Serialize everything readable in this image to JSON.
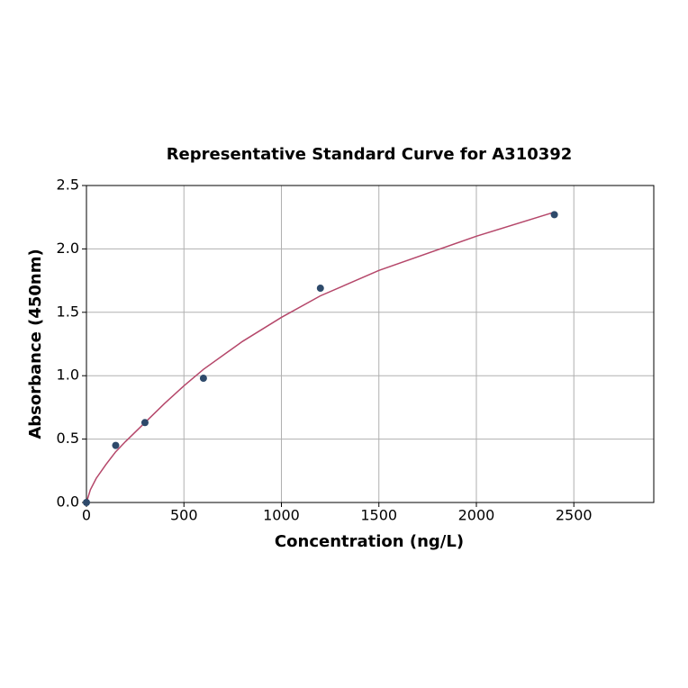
{
  "chart_data": {
    "type": "scatter",
    "title": "Representative Standard Curve for A310392",
    "x_label": "Concentration (ng/L)",
    "y_label": "Absorbance (450nm)",
    "x": [
      0,
      150,
      300,
      600,
      1200,
      2400
    ],
    "values": [
      0,
      0.45,
      0.63,
      0.98,
      1.69,
      2.27
    ],
    "color": "#2e4a6b",
    "curve": {
      "color": "#b5476a",
      "x": [
        0,
        20,
        50,
        100,
        150,
        200,
        300,
        400,
        500,
        600,
        800,
        1000,
        1200,
        1500,
        2000,
        2400
      ],
      "values": [
        0,
        0.1,
        0.19,
        0.3,
        0.4,
        0.48,
        0.63,
        0.78,
        0.92,
        1.05,
        1.27,
        1.46,
        1.63,
        1.83,
        2.1,
        2.29
      ]
    },
    "xlim": [
      0,
      2910
    ],
    "ylim": [
      0,
      2.5
    ],
    "xticks": [
      0,
      500,
      1000,
      1500,
      2000,
      2500
    ],
    "yticks": [
      {
        "value": 0,
        "label": "0.0"
      },
      0.5,
      {
        "value": 1,
        "label": "1.0"
      },
      1.5,
      {
        "value": 2,
        "label": "2.0"
      },
      2.5
    ],
    "grid": true
  }
}
